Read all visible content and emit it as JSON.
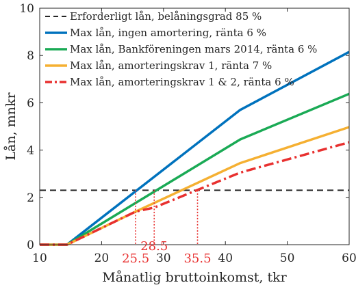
{
  "chart_data": {
    "type": "line",
    "xlabel": "Månatlig bruttoinkomst, tkr",
    "ylabel": "Lån, mnkr",
    "xlim": [
      10,
      60
    ],
    "ylim": [
      0,
      10
    ],
    "x_ticks": [
      "10",
      "20",
      "30",
      "40",
      "50",
      "60"
    ],
    "y_ticks": [
      "0",
      "2",
      "4",
      "6",
      "8",
      "10"
    ],
    "grid": false,
    "legend_position": "top-left",
    "series": [
      {
        "name": "Erforderligt lån, belåningsgrad 85 %",
        "color": "#262626",
        "style": "dashed",
        "x": [
          10,
          60
        ],
        "y": [
          2.3,
          2.3
        ]
      },
      {
        "name": "Max lån, ingen amortering, ränta 6 %",
        "color": "#0072bd",
        "style": "solid",
        "x": [
          10,
          14.4,
          42.4,
          60
        ],
        "y": [
          0,
          0,
          5.7,
          8.15
        ]
      },
      {
        "name": "Max lån, Bankföreningen mars 2014, ränta 6 %",
        "color": "#1aaa55",
        "style": "solid",
        "x": [
          10,
          14.4,
          42.4,
          60
        ],
        "y": [
          0,
          0,
          4.45,
          6.38
        ]
      },
      {
        "name": "Max lån, amorteringskrav 1, ränta 7 %",
        "color": "#f5b032",
        "style": "solid",
        "x": [
          10,
          14.4,
          25.5,
          42.4,
          60
        ],
        "y": [
          0,
          0,
          1.4,
          3.45,
          4.97
        ]
      },
      {
        "name": "Max lån, amorteringskrav 1 & 2, ränta 6 %",
        "color": "#e8302f",
        "style": "dashdot",
        "x": [
          10,
          14.4,
          25.5,
          28.5,
          42.4,
          60
        ],
        "y": [
          0,
          0,
          1.4,
          1.57,
          3.05,
          4.33
        ]
      }
    ],
    "annotations": [
      {
        "text": "25.5",
        "x": 25.5,
        "color": "#e8302f"
      },
      {
        "text": "28.5",
        "x": 28.5,
        "color": "#e8302f"
      },
      {
        "text": "35.5",
        "x": 35.5,
        "color": "#e8302f"
      }
    ]
  }
}
